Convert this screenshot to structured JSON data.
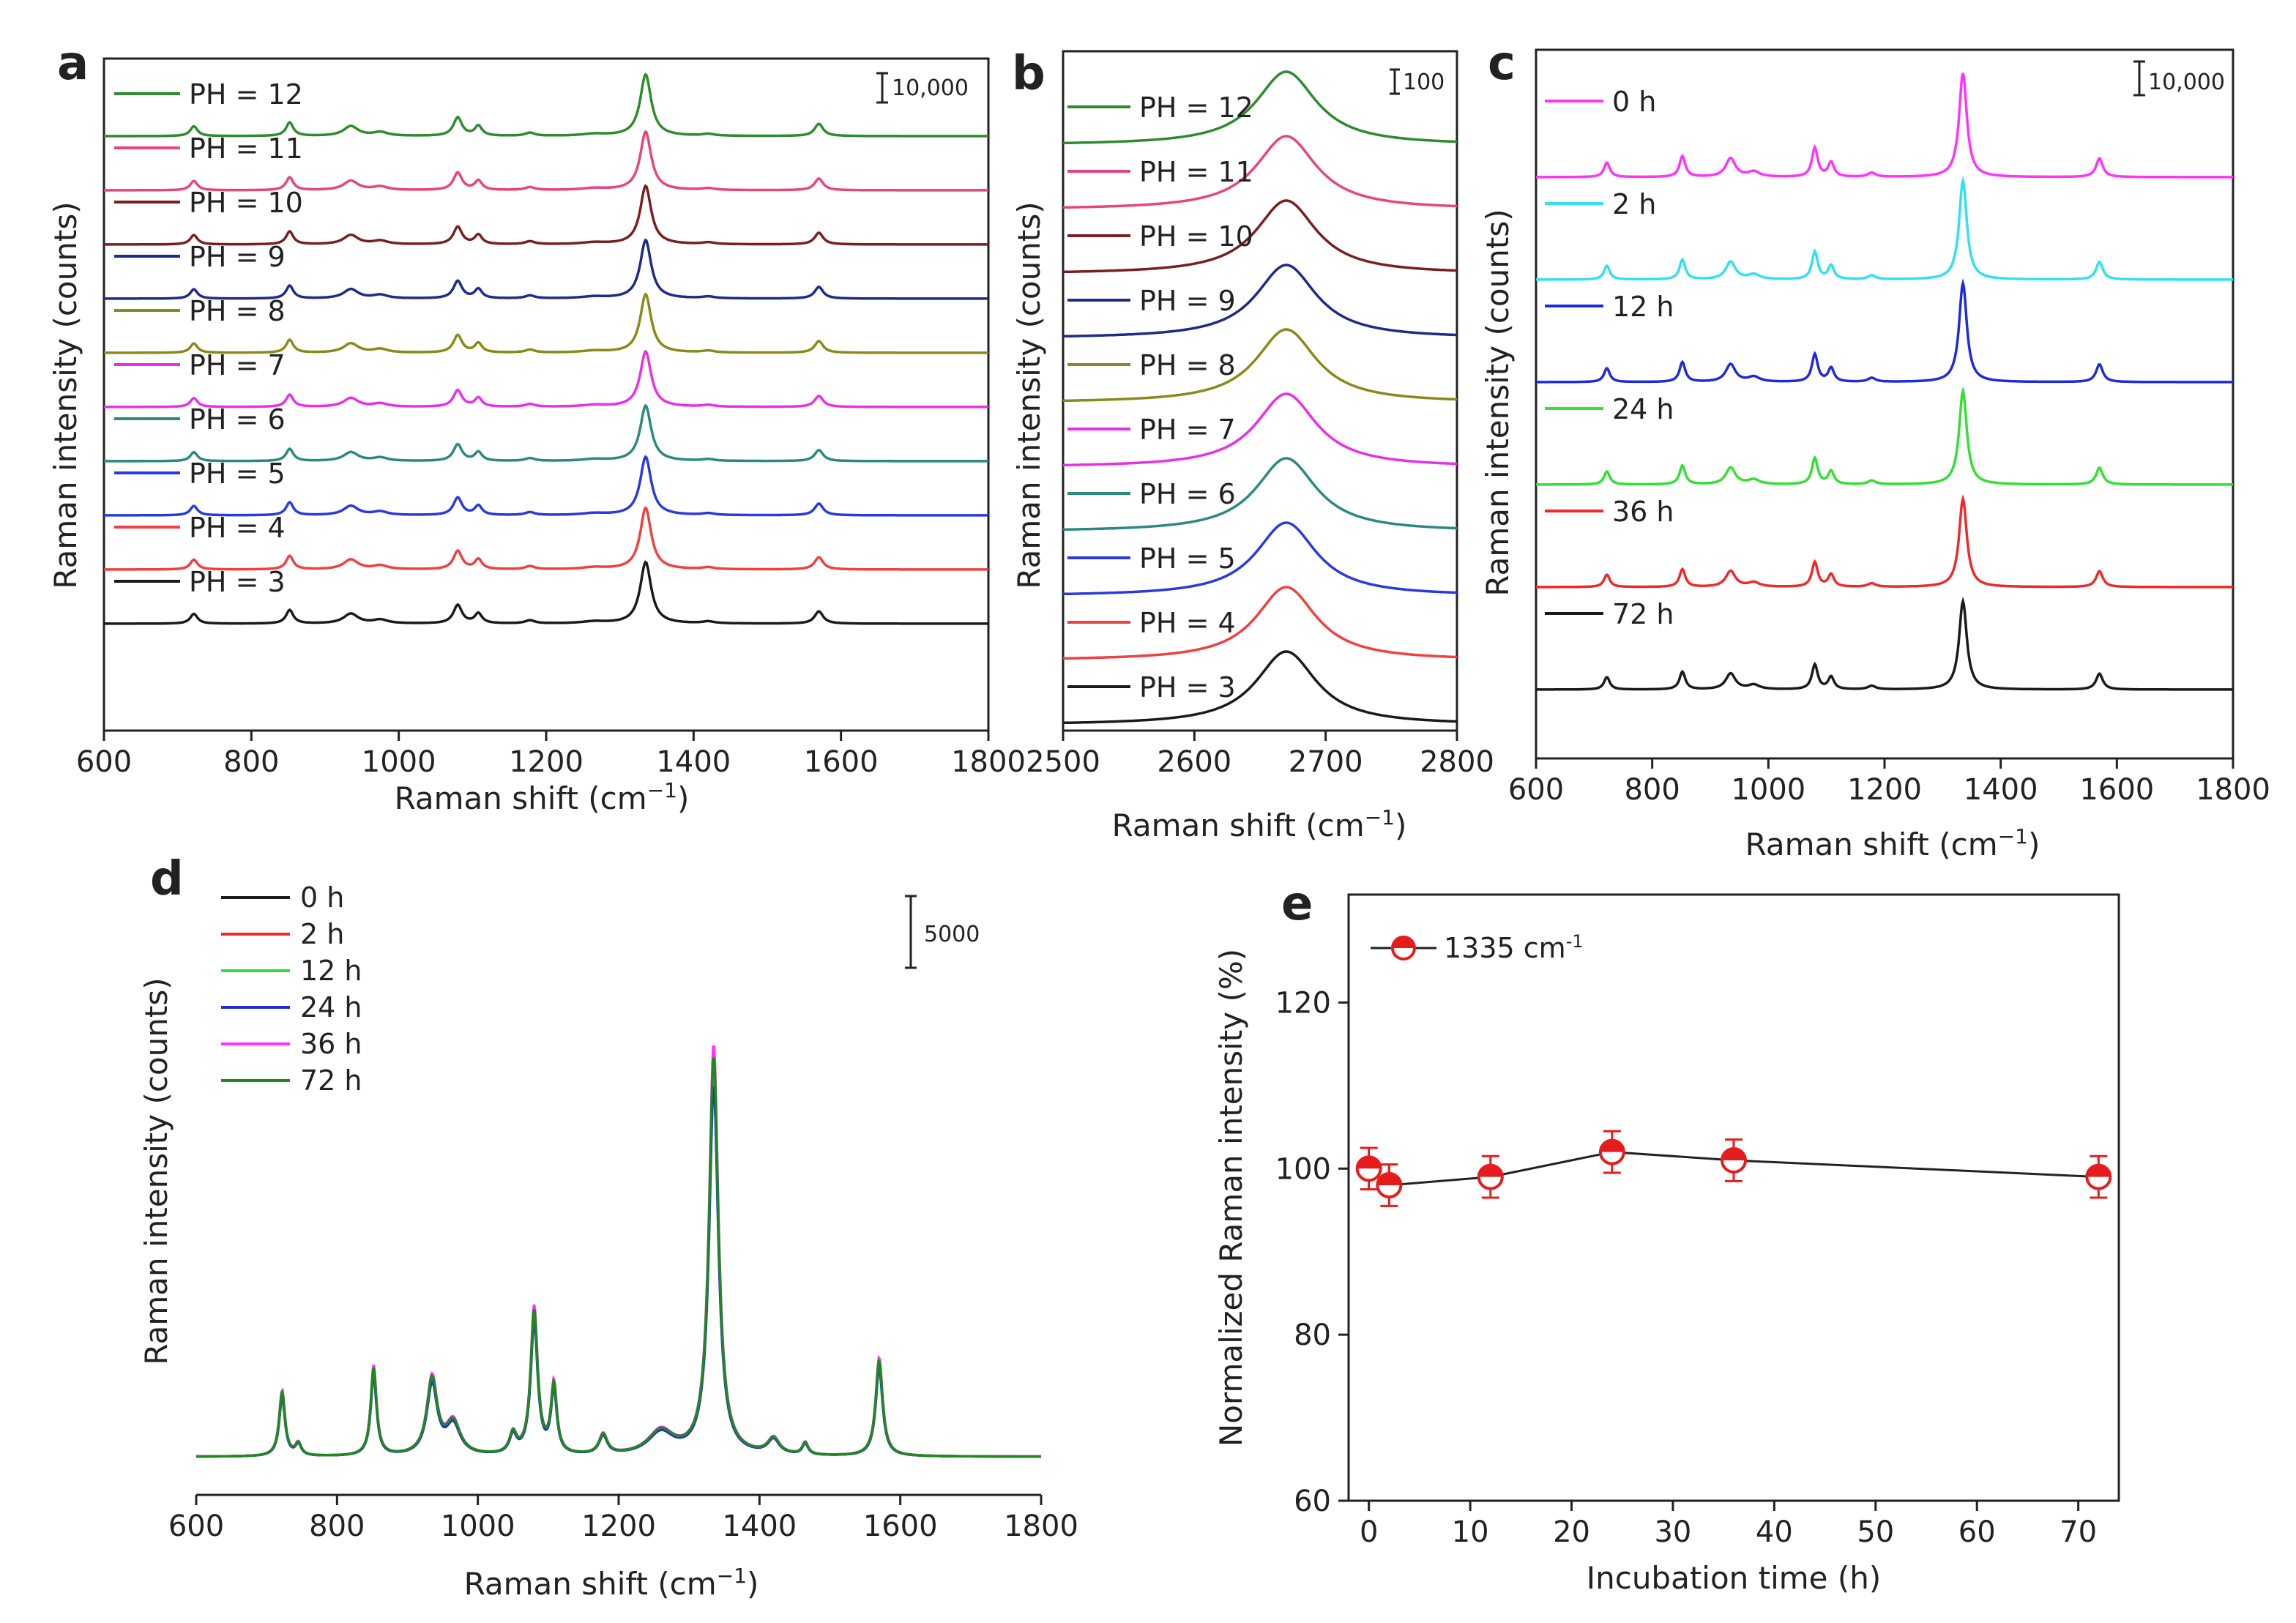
{
  "figure": {
    "panel_labels": [
      "a",
      "b",
      "c",
      "d",
      "e"
    ]
  },
  "chart_data": [
    {
      "panel": "a",
      "type": "line",
      "xlabel": "Raman shift (cm",
      "xlabel_sup": "−1",
      "xlabel_tail": ")",
      "ylabel": "Raman intensity (counts)",
      "xlim": [
        600,
        1800
      ],
      "xticks": [
        600,
        800,
        1000,
        1200,
        1400,
        1600,
        1800
      ],
      "scale_bar": "10,000",
      "peaks": [
        {
          "x": 722,
          "h": 0.16,
          "w": 6
        },
        {
          "x": 852,
          "h": 0.22,
          "w": 6
        },
        {
          "x": 935,
          "h": 0.16,
          "w": 12
        },
        {
          "x": 975,
          "h": 0.06,
          "w": 12
        },
        {
          "x": 1080,
          "h": 0.3,
          "w": 7
        },
        {
          "x": 1108,
          "h": 0.16,
          "w": 6
        },
        {
          "x": 1178,
          "h": 0.05,
          "w": 8
        },
        {
          "x": 1265,
          "h": 0.03,
          "w": 20
        },
        {
          "x": 1335,
          "h": 1.0,
          "w": 9
        },
        {
          "x": 1420,
          "h": 0.03,
          "w": 10
        },
        {
          "x": 1570,
          "h": 0.2,
          "w": 7
        }
      ],
      "series": [
        {
          "name": "PH = 12",
          "color": "#2e8b2e",
          "scale": 1.0
        },
        {
          "name": "PH = 11",
          "color": "#e8457c",
          "scale": 0.95
        },
        {
          "name": "PH = 10",
          "color": "#7a1f1f",
          "scale": 0.95
        },
        {
          "name": "PH = 9",
          "color": "#1f2a8a",
          "scale": 0.95
        },
        {
          "name": "PH = 8",
          "color": "#8a8a1a",
          "scale": 0.95
        },
        {
          "name": "PH = 7",
          "color": "#e830e8",
          "scale": 0.9
        },
        {
          "name": "PH = 6",
          "color": "#2a8a80",
          "scale": 0.9
        },
        {
          "name": "PH = 5",
          "color": "#2a3ae0",
          "scale": 0.95
        },
        {
          "name": "PH = 4",
          "color": "#f04040",
          "scale": 1.0
        },
        {
          "name": "PH = 3",
          "color": "#1a1a1a",
          "scale": 1.0
        }
      ]
    },
    {
      "panel": "b",
      "type": "line",
      "xlabel": "Raman shift (cm",
      "xlabel_sup": "−1",
      "xlabel_tail": ")",
      "ylabel": "Raman intensity (counts)",
      "xlim": [
        2500,
        2800
      ],
      "xticks": [
        2500,
        2600,
        2700,
        2800
      ],
      "scale_bar": "100",
      "peaks": [
        {
          "x": 2670,
          "h": 1.0,
          "w": 28
        }
      ],
      "series": [
        {
          "name": "PH = 12",
          "color": "#2e8b2e",
          "scale": 1.0
        },
        {
          "name": "PH = 11",
          "color": "#e8457c",
          "scale": 1.0
        },
        {
          "name": "PH = 10",
          "color": "#7a1f1f",
          "scale": 1.0
        },
        {
          "name": "PH = 9",
          "color": "#1f2a8a",
          "scale": 1.0
        },
        {
          "name": "PH = 8",
          "color": "#8a8a1a",
          "scale": 1.0
        },
        {
          "name": "PH = 7",
          "color": "#e830e8",
          "scale": 1.0
        },
        {
          "name": "PH = 6",
          "color": "#2a8a80",
          "scale": 1.0
        },
        {
          "name": "PH = 5",
          "color": "#2a3ae0",
          "scale": 1.0
        },
        {
          "name": "PH = 4",
          "color": "#f04040",
          "scale": 1.0
        },
        {
          "name": "PH = 3",
          "color": "#1a1a1a",
          "scale": 1.0
        }
      ]
    },
    {
      "panel": "c",
      "type": "line",
      "xlabel": "Raman shift (cm",
      "xlabel_sup": "−1",
      "xlabel_tail": ")",
      "ylabel": "Raman intensity (counts)",
      "xlim": [
        600,
        1800
      ],
      "xticks": [
        600,
        800,
        1000,
        1200,
        1400,
        1600,
        1800
      ],
      "scale_bar": "10,000",
      "peaks": [
        {
          "x": 722,
          "h": 0.14,
          "w": 6
        },
        {
          "x": 852,
          "h": 0.2,
          "w": 6
        },
        {
          "x": 935,
          "h": 0.18,
          "w": 10
        },
        {
          "x": 975,
          "h": 0.05,
          "w": 12
        },
        {
          "x": 1080,
          "h": 0.28,
          "w": 6
        },
        {
          "x": 1108,
          "h": 0.14,
          "w": 6
        },
        {
          "x": 1178,
          "h": 0.04,
          "w": 8
        },
        {
          "x": 1335,
          "h": 1.0,
          "w": 8
        },
        {
          "x": 1570,
          "h": 0.18,
          "w": 7
        }
      ],
      "series": [
        {
          "name": "0 h",
          "color": "#ff33ff",
          "scale": 1.0
        },
        {
          "name": "2 h",
          "color": "#33e0f0",
          "scale": 0.95
        },
        {
          "name": "12 h",
          "color": "#1f2adc",
          "scale": 0.95
        },
        {
          "name": "24 h",
          "color": "#33e033",
          "scale": 0.9
        },
        {
          "name": "36 h",
          "color": "#ee2a2a",
          "scale": 0.85
        },
        {
          "name": "72 h",
          "color": "#1a1a1a",
          "scale": 0.85
        }
      ]
    },
    {
      "panel": "d",
      "type": "line",
      "xlabel": "Raman shift (cm",
      "xlabel_sup": "−1",
      "xlabel_tail": ")",
      "ylabel": "Raman intensity (counts)",
      "xlim": [
        600,
        1800
      ],
      "xticks": [
        600,
        800,
        1000,
        1200,
        1400,
        1600,
        1800
      ],
      "scale_bar": "5000",
      "peaks": [
        {
          "x": 722,
          "h": 0.16,
          "w": 5
        },
        {
          "x": 745,
          "h": 0.03,
          "w": 5
        },
        {
          "x": 852,
          "h": 0.22,
          "w": 5
        },
        {
          "x": 935,
          "h": 0.19,
          "w": 9
        },
        {
          "x": 965,
          "h": 0.08,
          "w": 12
        },
        {
          "x": 1050,
          "h": 0.05,
          "w": 6
        },
        {
          "x": 1080,
          "h": 0.36,
          "w": 6
        },
        {
          "x": 1108,
          "h": 0.17,
          "w": 5
        },
        {
          "x": 1178,
          "h": 0.05,
          "w": 7
        },
        {
          "x": 1260,
          "h": 0.06,
          "w": 22
        },
        {
          "x": 1335,
          "h": 1.0,
          "w": 8
        },
        {
          "x": 1420,
          "h": 0.04,
          "w": 10
        },
        {
          "x": 1465,
          "h": 0.03,
          "w": 5
        },
        {
          "x": 1570,
          "h": 0.24,
          "w": 6
        }
      ],
      "series": [
        {
          "name": "0 h",
          "color": "#1a1a1a",
          "scale": 0.93
        },
        {
          "name": "2 h",
          "color": "#ee2a2a",
          "scale": 0.96
        },
        {
          "name": "12 h",
          "color": "#33e033",
          "scale": 0.94
        },
        {
          "name": "24 h",
          "color": "#1f2adc",
          "scale": 0.9
        },
        {
          "name": "36 h",
          "color": "#ff33ff",
          "scale": 1.0
        },
        {
          "name": "72 h",
          "color": "#1e8a1e",
          "scale": 0.97
        }
      ]
    },
    {
      "panel": "e",
      "type": "scatter",
      "xlabel": "Incubation time (h)",
      "ylabel": "Normalized Raman intensity (%)",
      "xlim": [
        -2,
        74
      ],
      "ylim": [
        60,
        133
      ],
      "xticks": [
        0,
        10,
        20,
        30,
        40,
        50,
        60,
        70
      ],
      "yticks": [
        60,
        80,
        100,
        120
      ],
      "legend_label": "1335 cm",
      "legend_sup": "-1",
      "x": [
        0,
        2,
        12,
        24,
        36,
        72
      ],
      "y": [
        100,
        98,
        99,
        102,
        101,
        99
      ],
      "err": [
        2.5,
        2.5,
        2.5,
        2.5,
        2.5,
        2.5
      ]
    }
  ]
}
